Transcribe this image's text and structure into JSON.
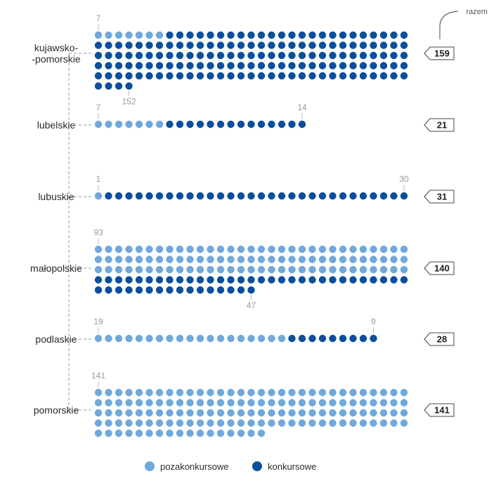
{
  "chart_data": {
    "type": "waffle",
    "title": "",
    "total_header": "razem",
    "dots_per_row": 31,
    "categories": [
      "kujawsko-\n-pomorskie",
      "lubelskie",
      "lubuskie",
      "małopolskie",
      "podlaskie",
      "pomorskie"
    ],
    "series": [
      {
        "name": "pozakonkursowe",
        "values": [
          7,
          7,
          1,
          93,
          19,
          141
        ]
      },
      {
        "name": "konkursowe",
        "values": [
          152,
          14,
          30,
          47,
          9,
          0
        ]
      }
    ],
    "totals": [
      159,
      21,
      31,
      140,
      28,
      141
    ],
    "count_labels": [
      {
        "first": "7",
        "last": "152"
      },
      {
        "first": "7",
        "last": "14"
      },
      {
        "first": "1",
        "last": "30"
      },
      {
        "first": "93",
        "last": "47"
      },
      {
        "first": "19",
        "last": "9"
      },
      {
        "first": "141",
        "last": ""
      }
    ],
    "colors": {
      "pozakonkursowe": "#6fa8dc",
      "konkursowe": "#0b4f9c",
      "connector": "#999999"
    },
    "legend": {
      "placement": "bottom-center",
      "items": [
        "pozakonkursowe",
        "konkursowe"
      ]
    }
  }
}
